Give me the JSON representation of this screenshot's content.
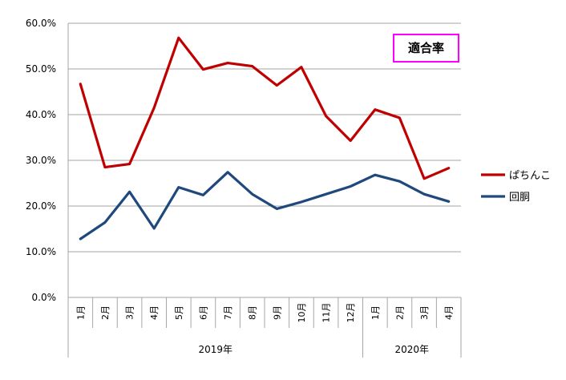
{
  "chart_data": {
    "type": "line",
    "title": "適合率",
    "categories": [
      "1月",
      "2月",
      "3月",
      "4月",
      "5月",
      "6月",
      "7月",
      "8月",
      "9月",
      "10月",
      "11月",
      "12月",
      "1月",
      "2月",
      "3月",
      "4月"
    ],
    "groups": [
      {
        "label": "2019年",
        "count": 12
      },
      {
        "label": "2020年",
        "count": 4
      }
    ],
    "series": [
      {
        "name": "ぱちんこ",
        "color": "#C00000",
        "values": [
          0.467,
          0.285,
          0.292,
          0.415,
          0.568,
          0.499,
          0.513,
          0.506,
          0.464,
          0.504,
          0.397,
          0.343,
          0.411,
          0.393,
          0.26,
          0.283
        ]
      },
      {
        "name": "回胴",
        "color": "#1F497D",
        "values": [
          0.128,
          0.164,
          0.231,
          0.151,
          0.241,
          0.224,
          0.274,
          0.226,
          0.194,
          0.209,
          0.226,
          0.243,
          0.268,
          0.254,
          0.226,
          0.21
        ]
      }
    ],
    "ylim": [
      0,
      0.6
    ],
    "yticks": [
      "0.0%",
      "10.0%",
      "20.0%",
      "30.0%",
      "40.0%",
      "50.0%",
      "60.0%"
    ],
    "xlabel": "",
    "ylabel": "",
    "grid": true,
    "legend": "right",
    "title_border_color": "#FF00FF"
  }
}
